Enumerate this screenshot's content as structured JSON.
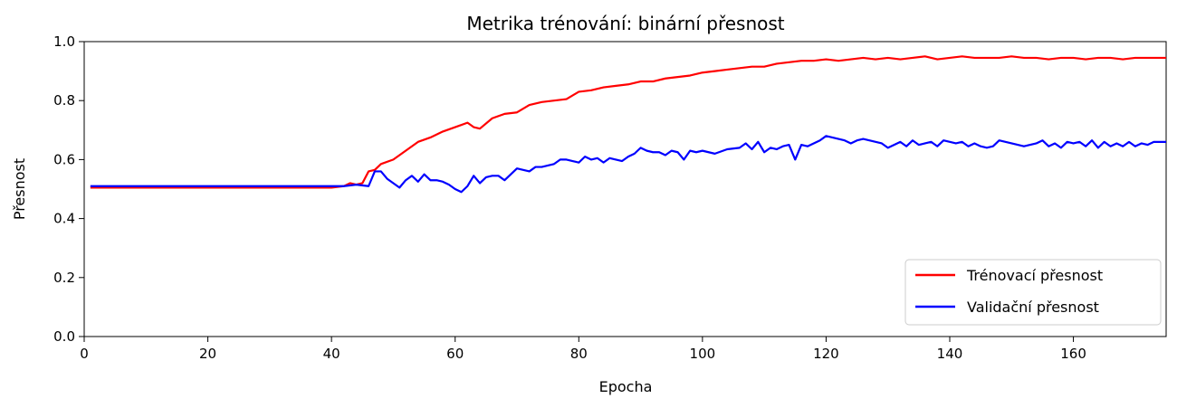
{
  "chart_data": {
    "type": "line",
    "title": "Metrika trénování: binární přesnost",
    "xlabel": "Epocha",
    "ylabel": "Přesnost",
    "xlim": [
      0,
      175
    ],
    "ylim": [
      0.0,
      1.0
    ],
    "xticks": [
      0,
      20,
      40,
      60,
      80,
      100,
      120,
      140,
      160
    ],
    "yticks": [
      0.0,
      0.2,
      0.4,
      0.6,
      0.8,
      1.0
    ],
    "grid": false,
    "legend_position": "lower-right",
    "series": [
      {
        "name": "Trénovací přesnost",
        "color": "#ff0000",
        "points": [
          [
            1,
            0.505
          ],
          [
            10,
            0.505
          ],
          [
            20,
            0.505
          ],
          [
            30,
            0.505
          ],
          [
            40,
            0.505
          ],
          [
            42,
            0.51
          ],
          [
            43,
            0.52
          ],
          [
            44,
            0.515
          ],
          [
            45,
            0.52
          ],
          [
            46,
            0.56
          ],
          [
            47,
            0.565
          ],
          [
            48,
            0.585
          ],
          [
            50,
            0.6
          ],
          [
            52,
            0.63
          ],
          [
            54,
            0.66
          ],
          [
            56,
            0.675
          ],
          [
            58,
            0.695
          ],
          [
            60,
            0.71
          ],
          [
            62,
            0.725
          ],
          [
            63,
            0.71
          ],
          [
            64,
            0.705
          ],
          [
            66,
            0.74
          ],
          [
            68,
            0.755
          ],
          [
            70,
            0.76
          ],
          [
            72,
            0.785
          ],
          [
            74,
            0.795
          ],
          [
            76,
            0.8
          ],
          [
            78,
            0.805
          ],
          [
            80,
            0.83
          ],
          [
            82,
            0.835
          ],
          [
            84,
            0.845
          ],
          [
            86,
            0.85
          ],
          [
            88,
            0.855
          ],
          [
            90,
            0.865
          ],
          [
            92,
            0.865
          ],
          [
            94,
            0.875
          ],
          [
            96,
            0.88
          ],
          [
            98,
            0.885
          ],
          [
            100,
            0.895
          ],
          [
            102,
            0.9
          ],
          [
            104,
            0.905
          ],
          [
            106,
            0.91
          ],
          [
            108,
            0.915
          ],
          [
            110,
            0.915
          ],
          [
            112,
            0.925
          ],
          [
            114,
            0.93
          ],
          [
            116,
            0.935
          ],
          [
            118,
            0.935
          ],
          [
            120,
            0.94
          ],
          [
            122,
            0.935
          ],
          [
            124,
            0.94
          ],
          [
            126,
            0.945
          ],
          [
            128,
            0.94
          ],
          [
            130,
            0.945
          ],
          [
            132,
            0.94
          ],
          [
            134,
            0.945
          ],
          [
            136,
            0.95
          ],
          [
            138,
            0.94
          ],
          [
            140,
            0.945
          ],
          [
            142,
            0.95
          ],
          [
            144,
            0.945
          ],
          [
            146,
            0.945
          ],
          [
            148,
            0.945
          ],
          [
            150,
            0.95
          ],
          [
            152,
            0.945
          ],
          [
            154,
            0.945
          ],
          [
            156,
            0.94
          ],
          [
            158,
            0.945
          ],
          [
            160,
            0.945
          ],
          [
            162,
            0.94
          ],
          [
            164,
            0.945
          ],
          [
            166,
            0.945
          ],
          [
            168,
            0.94
          ],
          [
            170,
            0.945
          ],
          [
            172,
            0.945
          ],
          [
            175,
            0.945
          ]
        ]
      },
      {
        "name": "Validační přesnost",
        "color": "#0000ff",
        "points": [
          [
            1,
            0.51
          ],
          [
            10,
            0.51
          ],
          [
            20,
            0.51
          ],
          [
            30,
            0.51
          ],
          [
            40,
            0.51
          ],
          [
            42,
            0.51
          ],
          [
            44,
            0.515
          ],
          [
            46,
            0.51
          ],
          [
            47,
            0.56
          ],
          [
            48,
            0.56
          ],
          [
            49,
            0.535
          ],
          [
            50,
            0.52
          ],
          [
            51,
            0.505
          ],
          [
            52,
            0.53
          ],
          [
            53,
            0.545
          ],
          [
            54,
            0.525
          ],
          [
            55,
            0.55
          ],
          [
            56,
            0.53
          ],
          [
            57,
            0.53
          ],
          [
            58,
            0.525
          ],
          [
            59,
            0.515
          ],
          [
            60,
            0.5
          ],
          [
            61,
            0.49
          ],
          [
            62,
            0.51
          ],
          [
            63,
            0.545
          ],
          [
            64,
            0.52
          ],
          [
            65,
            0.54
          ],
          [
            66,
            0.545
          ],
          [
            67,
            0.545
          ],
          [
            68,
            0.53
          ],
          [
            69,
            0.55
          ],
          [
            70,
            0.57
          ],
          [
            71,
            0.565
          ],
          [
            72,
            0.56
          ],
          [
            73,
            0.575
          ],
          [
            74,
            0.575
          ],
          [
            75,
            0.58
          ],
          [
            76,
            0.585
          ],
          [
            77,
            0.6
          ],
          [
            78,
            0.6
          ],
          [
            79,
            0.595
          ],
          [
            80,
            0.59
          ],
          [
            81,
            0.61
          ],
          [
            82,
            0.6
          ],
          [
            83,
            0.605
          ],
          [
            84,
            0.59
          ],
          [
            85,
            0.605
          ],
          [
            86,
            0.6
          ],
          [
            87,
            0.595
          ],
          [
            88,
            0.61
          ],
          [
            89,
            0.62
          ],
          [
            90,
            0.64
          ],
          [
            91,
            0.63
          ],
          [
            92,
            0.625
          ],
          [
            93,
            0.625
          ],
          [
            94,
            0.615
          ],
          [
            95,
            0.63
          ],
          [
            96,
            0.625
          ],
          [
            97,
            0.6
          ],
          [
            98,
            0.63
          ],
          [
            99,
            0.625
          ],
          [
            100,
            0.63
          ],
          [
            102,
            0.62
          ],
          [
            104,
            0.635
          ],
          [
            106,
            0.64
          ],
          [
            107,
            0.655
          ],
          [
            108,
            0.635
          ],
          [
            109,
            0.66
          ],
          [
            110,
            0.625
          ],
          [
            111,
            0.64
          ],
          [
            112,
            0.635
          ],
          [
            113,
            0.645
          ],
          [
            114,
            0.65
          ],
          [
            115,
            0.6
          ],
          [
            116,
            0.65
          ],
          [
            117,
            0.645
          ],
          [
            118,
            0.655
          ],
          [
            119,
            0.665
          ],
          [
            120,
            0.68
          ],
          [
            121,
            0.675
          ],
          [
            122,
            0.67
          ],
          [
            123,
            0.665
          ],
          [
            124,
            0.655
          ],
          [
            125,
            0.665
          ],
          [
            126,
            0.67
          ],
          [
            127,
            0.665
          ],
          [
            128,
            0.66
          ],
          [
            129,
            0.655
          ],
          [
            130,
            0.64
          ],
          [
            131,
            0.65
          ],
          [
            132,
            0.66
          ],
          [
            133,
            0.645
          ],
          [
            134,
            0.665
          ],
          [
            135,
            0.65
          ],
          [
            136,
            0.655
          ],
          [
            137,
            0.66
          ],
          [
            138,
            0.645
          ],
          [
            139,
            0.665
          ],
          [
            140,
            0.66
          ],
          [
            141,
            0.655
          ],
          [
            142,
            0.66
          ],
          [
            143,
            0.645
          ],
          [
            144,
            0.655
          ],
          [
            145,
            0.645
          ],
          [
            146,
            0.64
          ],
          [
            147,
            0.645
          ],
          [
            148,
            0.665
          ],
          [
            149,
            0.66
          ],
          [
            150,
            0.655
          ],
          [
            151,
            0.65
          ],
          [
            152,
            0.645
          ],
          [
            153,
            0.65
          ],
          [
            154,
            0.655
          ],
          [
            155,
            0.665
          ],
          [
            156,
            0.645
          ],
          [
            157,
            0.655
          ],
          [
            158,
            0.64
          ],
          [
            159,
            0.66
          ],
          [
            160,
            0.655
          ],
          [
            161,
            0.66
          ],
          [
            162,
            0.645
          ],
          [
            163,
            0.665
          ],
          [
            164,
            0.64
          ],
          [
            165,
            0.66
          ],
          [
            166,
            0.645
          ],
          [
            167,
            0.655
          ],
          [
            168,
            0.645
          ],
          [
            169,
            0.66
          ],
          [
            170,
            0.645
          ],
          [
            171,
            0.655
          ],
          [
            172,
            0.65
          ],
          [
            173,
            0.66
          ],
          [
            175,
            0.66
          ]
        ]
      }
    ]
  }
}
